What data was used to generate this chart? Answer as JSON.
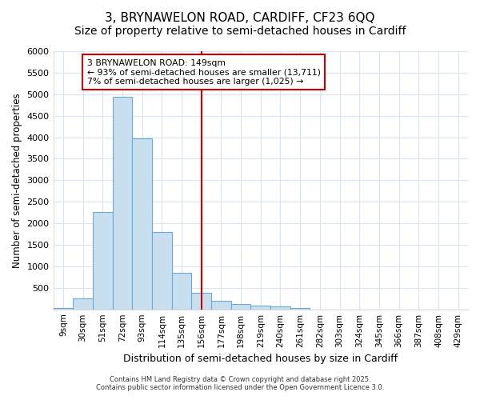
{
  "title_line1": "3, BRYNAWELON ROAD, CARDIFF, CF23 6QQ",
  "title_line2": "Size of property relative to semi-detached houses in Cardiff",
  "xlabel": "Distribution of semi-detached houses by size in Cardiff",
  "ylabel": "Number of semi-detached properties",
  "bar_color": "#c8dff0",
  "bar_edge_color": "#6aaad4",
  "categories": [
    "9sqm",
    "30sqm",
    "51sqm",
    "72sqm",
    "93sqm",
    "114sqm",
    "135sqm",
    "156sqm",
    "177sqm",
    "198sqm",
    "219sqm",
    "240sqm",
    "261sqm",
    "282sqm",
    "303sqm",
    "324sqm",
    "345sqm",
    "366sqm",
    "387sqm",
    "408sqm",
    "429sqm"
  ],
  "values": [
    30,
    260,
    2260,
    4940,
    3980,
    1790,
    850,
    390,
    205,
    120,
    80,
    60,
    30,
    0,
    0,
    0,
    0,
    0,
    0,
    0,
    0
  ],
  "vline_index": 7,
  "vline_color": "#cc0000",
  "annotation_text": "3 BRYNAWELON ROAD: 149sqm\n← 93% of semi-detached houses are smaller (13,711)\n7% of semi-detached houses are larger (1,025) →",
  "annotation_box_color": "#ffffff",
  "annotation_box_edge": "#cc0000",
  "ylim": [
    0,
    6000
  ],
  "yticks": [
    0,
    500,
    1000,
    1500,
    2000,
    2500,
    3000,
    3500,
    4000,
    4500,
    5000,
    5500,
    6000
  ],
  "footer_line1": "Contains HM Land Registry data © Crown copyright and database right 2025.",
  "footer_line2": "Contains public sector information licensed under the Open Government Licence 3.0.",
  "background_color": "#ffffff",
  "grid_color": "#d8e4f0",
  "title_fontsize": 11,
  "subtitle_fontsize": 10
}
